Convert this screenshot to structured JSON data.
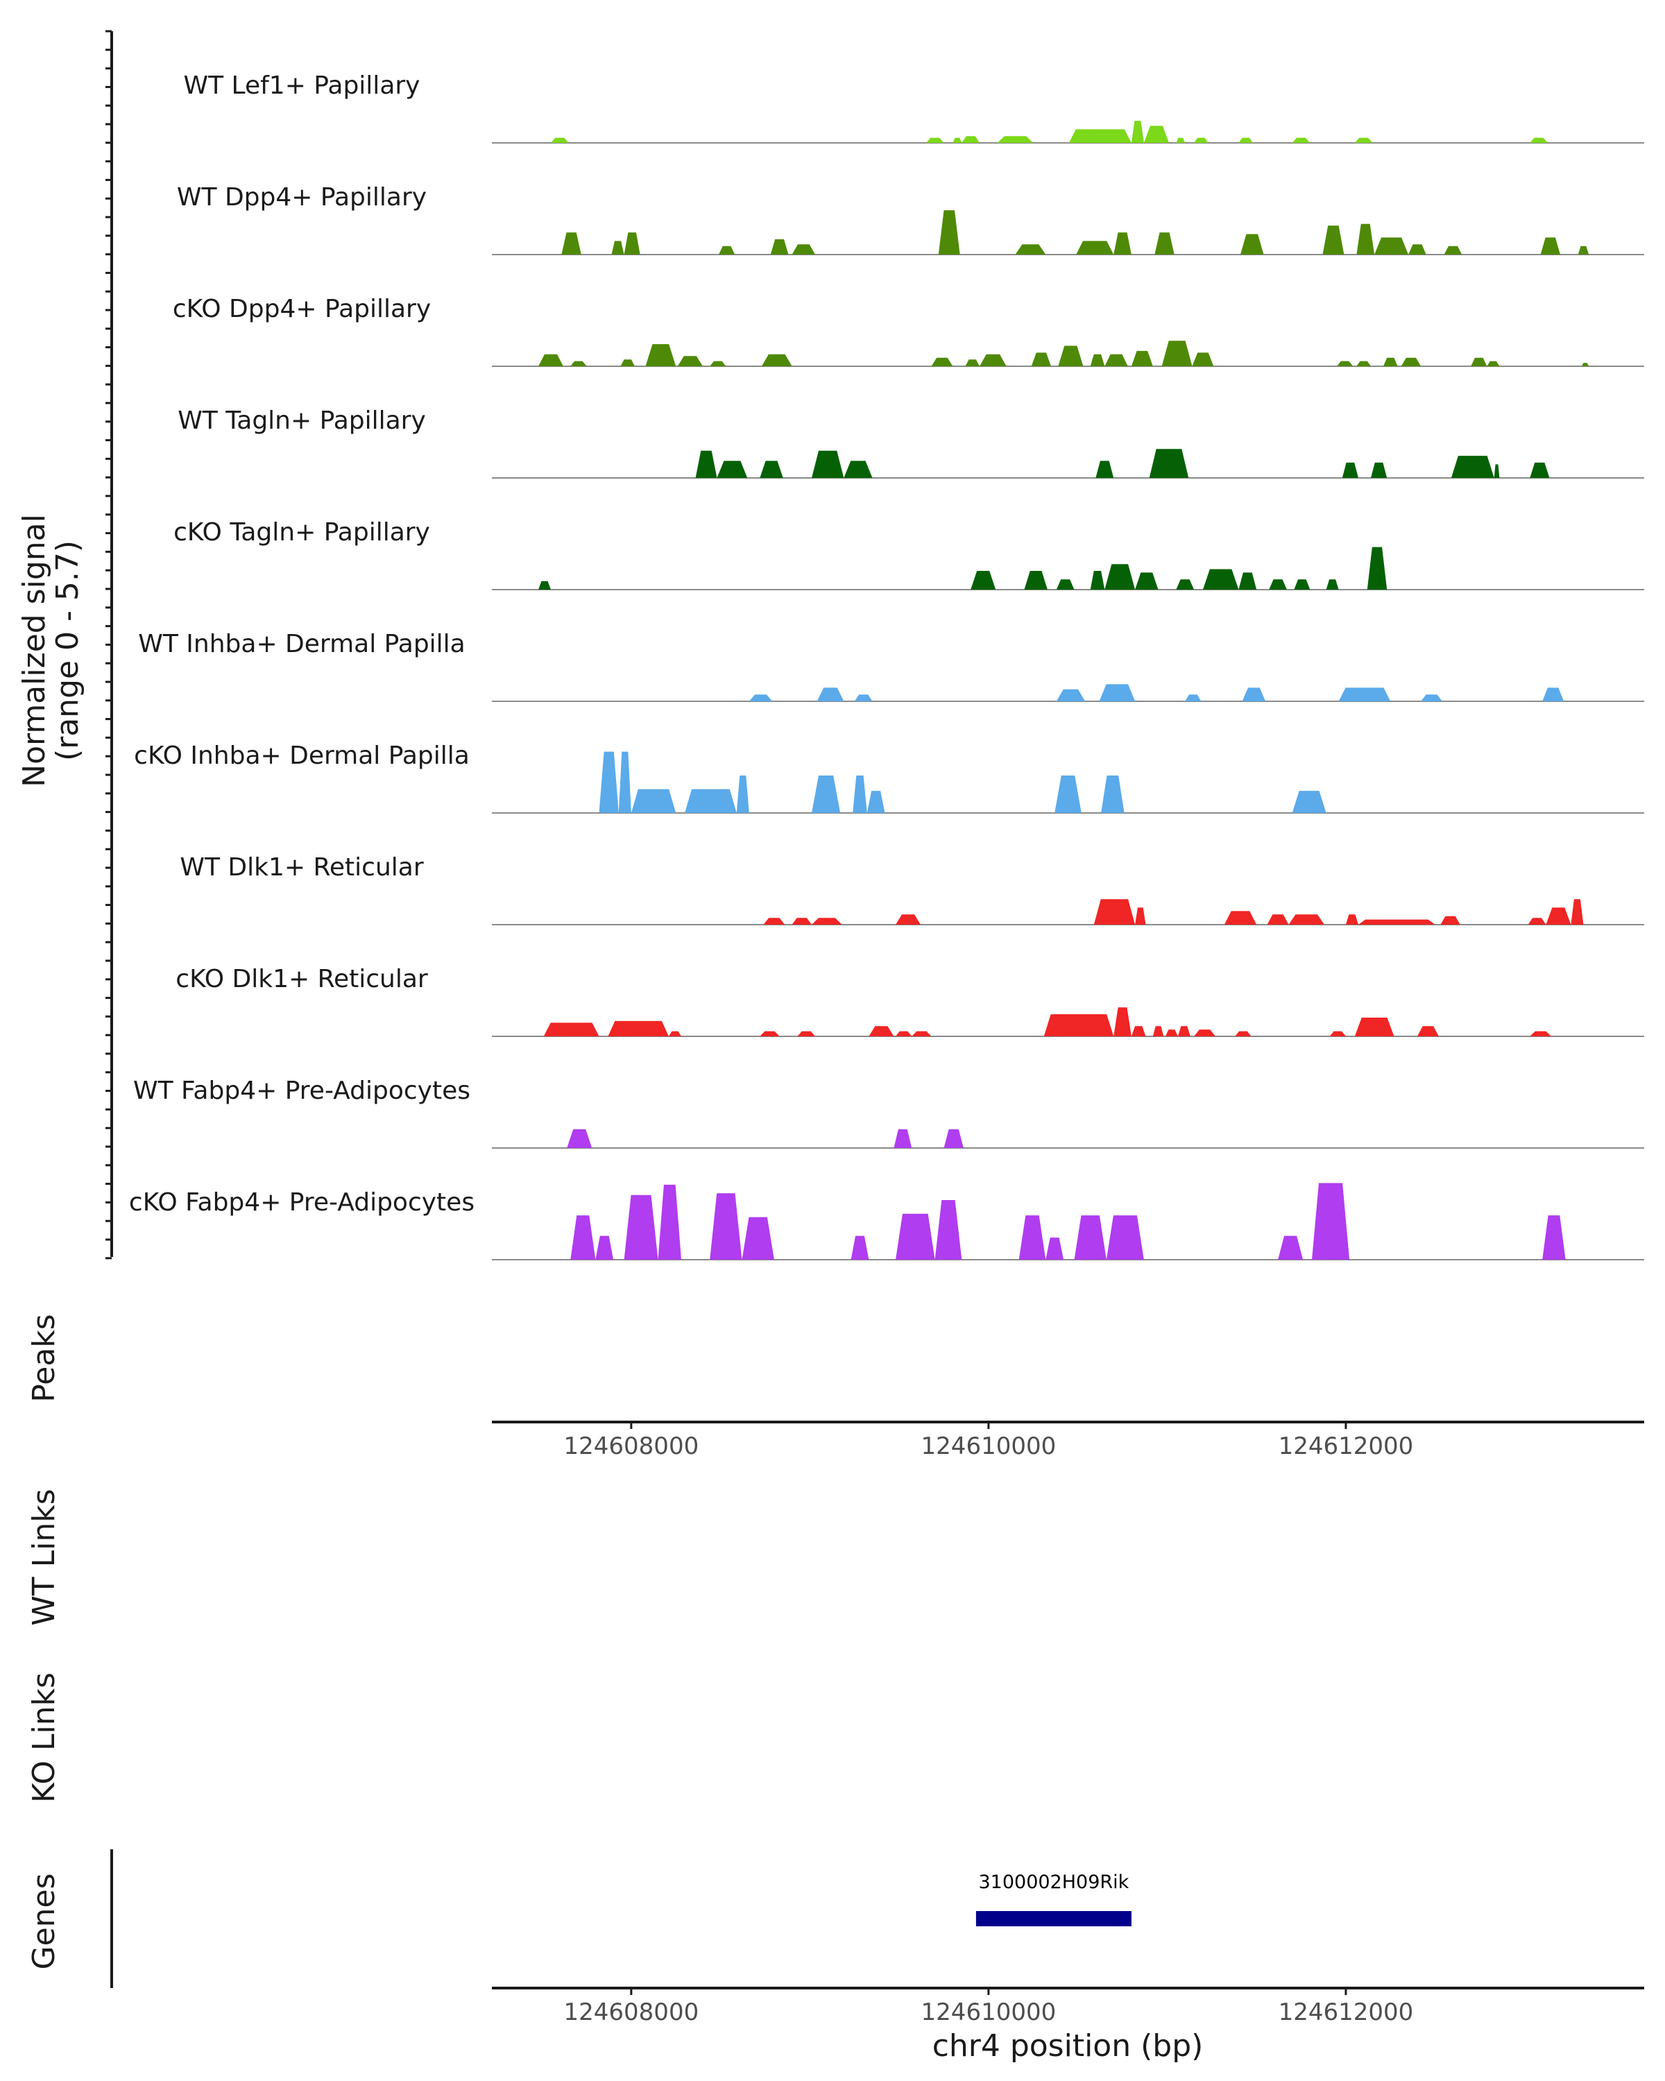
{
  "chart_data": {
    "type": "area",
    "title": "",
    "ylabel_line1": "Normalized signal",
    "ylabel_line2": "(range 0 - 5.7)",
    "ylim": [
      0,
      5.7
    ],
    "x_range": [
      124607220,
      124613670
    ],
    "xlabel": "chr4 position (bp)",
    "x_ticks": [
      124608000,
      124610000,
      124612000
    ],
    "x_tick_labels": [
      "124608000",
      "124610000",
      "124612000"
    ],
    "tracks": [
      {
        "name": "WT Lef1+ Papillary",
        "color": "#7CD81A",
        "peaks": [
          [
            124607550,
            124607650,
            0.3
          ],
          [
            124609650,
            124609750,
            0.3
          ],
          [
            124609800,
            124609850,
            0.3
          ],
          [
            124609850,
            124609950,
            0.4
          ],
          [
            124610050,
            124610250,
            0.4
          ],
          [
            124610450,
            124610800,
            0.8
          ],
          [
            124610800,
            124610870,
            1.3
          ],
          [
            124610870,
            124611010,
            1.0
          ],
          [
            124611050,
            124611100,
            0.3
          ],
          [
            124611150,
            124611230,
            0.3
          ],
          [
            124611400,
            124611480,
            0.3
          ],
          [
            124611700,
            124611800,
            0.3
          ],
          [
            124612050,
            124612150,
            0.3
          ],
          [
            124613030,
            124613130,
            0.3
          ]
        ]
      },
      {
        "name": "WT Dpp4+ Papillary",
        "color": "#4E8A07",
        "peaks": [
          [
            124607610,
            124607720,
            1.3
          ],
          [
            124607890,
            124607960,
            0.8
          ],
          [
            124607960,
            124608050,
            1.3
          ],
          [
            124608490,
            124608580,
            0.5
          ],
          [
            124608780,
            124608880,
            0.9
          ],
          [
            124608900,
            124609030,
            0.6
          ],
          [
            124609720,
            124609840,
            2.6
          ],
          [
            124610150,
            124610320,
            0.6
          ],
          [
            124610490,
            124610700,
            0.8
          ],
          [
            124610700,
            124610800,
            1.3
          ],
          [
            124610930,
            124611040,
            1.3
          ],
          [
            124611410,
            124611540,
            1.2
          ],
          [
            124611870,
            124611990,
            1.7
          ],
          [
            124612060,
            124612160,
            1.8
          ],
          [
            124612160,
            124612350,
            1.0
          ],
          [
            124612350,
            124612450,
            0.6
          ],
          [
            124612550,
            124612650,
            0.5
          ],
          [
            124613090,
            124613200,
            1.0
          ],
          [
            124613300,
            124613360,
            0.5
          ]
        ]
      },
      {
        "name": "cKO Dpp4+ Papillary",
        "color": "#4E8A07",
        "peaks": [
          [
            124607480,
            124607620,
            0.7
          ],
          [
            124607660,
            124607750,
            0.3
          ],
          [
            124607940,
            124608020,
            0.4
          ],
          [
            124608080,
            124608250,
            1.3
          ],
          [
            124608260,
            124608400,
            0.6
          ],
          [
            124608440,
            124608530,
            0.3
          ],
          [
            124608730,
            124608900,
            0.7
          ],
          [
            124609680,
            124609800,
            0.5
          ],
          [
            124609870,
            124609950,
            0.4
          ],
          [
            124609950,
            124610100,
            0.7
          ],
          [
            124610240,
            124610350,
            0.8
          ],
          [
            124610390,
            124610530,
            1.2
          ],
          [
            124610570,
            124610650,
            0.7
          ],
          [
            124610650,
            124610780,
            0.7
          ],
          [
            124610800,
            124610920,
            0.9
          ],
          [
            124610970,
            124611140,
            1.5
          ],
          [
            124611140,
            124611260,
            0.8
          ],
          [
            124611950,
            124612040,
            0.3
          ],
          [
            124612060,
            124612140,
            0.3
          ],
          [
            124612210,
            124612290,
            0.5
          ],
          [
            124612310,
            124612420,
            0.5
          ],
          [
            124612700,
            124612790,
            0.5
          ],
          [
            124612790,
            124612860,
            0.3
          ],
          [
            124613320,
            124613360,
            0.2
          ]
        ]
      },
      {
        "name": "WT Tagln+ Papillary",
        "color": "#066106",
        "peaks": [
          [
            124608360,
            124608480,
            1.6
          ],
          [
            124608480,
            124608650,
            1.0
          ],
          [
            124608720,
            124608850,
            1.0
          ],
          [
            124609010,
            124609190,
            1.6
          ],
          [
            124609190,
            124609350,
            1.0
          ],
          [
            124610600,
            124610700,
            1.0
          ],
          [
            124610900,
            124611120,
            1.7
          ],
          [
            124611980,
            124612070,
            0.9
          ],
          [
            124612140,
            124612230,
            0.9
          ],
          [
            124612590,
            124612830,
            1.3
          ],
          [
            124612830,
            124612860,
            0.8
          ],
          [
            124613030,
            124613140,
            0.9
          ]
        ]
      },
      {
        "name": "cKO Tagln+ Papillary",
        "color": "#066106",
        "peaks": [
          [
            124607480,
            124607550,
            0.5
          ],
          [
            124609900,
            124610040,
            1.1
          ],
          [
            124610200,
            124610330,
            1.1
          ],
          [
            124610380,
            124610480,
            0.6
          ],
          [
            124610570,
            124610650,
            1.1
          ],
          [
            124610650,
            124610820,
            1.5
          ],
          [
            124610820,
            124610950,
            1.0
          ],
          [
            124611050,
            124611150,
            0.6
          ],
          [
            124611200,
            124611400,
            1.2
          ],
          [
            124611400,
            124611500,
            1.0
          ],
          [
            124611570,
            124611670,
            0.6
          ],
          [
            124611710,
            124611800,
            0.6
          ],
          [
            124611890,
            124611960,
            0.6
          ],
          [
            124612120,
            124612230,
            2.5
          ]
        ]
      },
      {
        "name": "WT Inhba+ Dermal Papilla",
        "color": "#5BAAEA",
        "peaks": [
          [
            124608660,
            124608790,
            0.4
          ],
          [
            124609040,
            124609190,
            0.8
          ],
          [
            124609250,
            124609350,
            0.4
          ],
          [
            124610380,
            124610540,
            0.7
          ],
          [
            124610620,
            124610820,
            1.0
          ],
          [
            124611100,
            124611190,
            0.4
          ],
          [
            124611420,
            124611550,
            0.8
          ],
          [
            124611960,
            124612250,
            0.8
          ],
          [
            124612420,
            124612540,
            0.4
          ],
          [
            124613100,
            124613220,
            0.8
          ]
        ]
      },
      {
        "name": "cKO Inhba+ Dermal Papilla",
        "color": "#5BAAEA",
        "peaks": [
          [
            124607820,
            124607930,
            3.6
          ],
          [
            124607930,
            124608000,
            3.6
          ],
          [
            124608000,
            124608250,
            1.4
          ],
          [
            124608300,
            124608590,
            1.4
          ],
          [
            124608590,
            124608660,
            2.2
          ],
          [
            124609010,
            124609170,
            2.2
          ],
          [
            124609240,
            124609320,
            2.2
          ],
          [
            124609320,
            124609420,
            1.3
          ],
          [
            124610370,
            124610520,
            2.2
          ],
          [
            124610630,
            124610760,
            2.2
          ],
          [
            124611700,
            124611890,
            1.3
          ]
        ]
      },
      {
        "name": "WT Dlk1+ Reticular",
        "color": "#F02525",
        "peaks": [
          [
            124608740,
            124608860,
            0.4
          ],
          [
            124608900,
            124609010,
            0.4
          ],
          [
            124609010,
            124609180,
            0.4
          ],
          [
            124609480,
            124609620,
            0.6
          ],
          [
            124610590,
            124610820,
            1.5
          ],
          [
            124610820,
            124610880,
            1.0
          ],
          [
            124611320,
            124611500,
            0.8
          ],
          [
            124611560,
            124611680,
            0.6
          ],
          [
            124611680,
            124611880,
            0.6
          ],
          [
            124612000,
            124612070,
            0.6
          ],
          [
            124612070,
            124612500,
            0.3
          ],
          [
            124612530,
            124612640,
            0.5
          ],
          [
            124613020,
            124613120,
            0.4
          ],
          [
            124613120,
            124613260,
            1.0
          ],
          [
            124613260,
            124613330,
            1.5
          ]
        ]
      },
      {
        "name": "cKO Dlk1+ Reticular",
        "color": "#F02525",
        "peaks": [
          [
            124607510,
            124607820,
            0.8
          ],
          [
            124607870,
            124608210,
            0.9
          ],
          [
            124608210,
            124608280,
            0.3
          ],
          [
            124608720,
            124608830,
            0.3
          ],
          [
            124608930,
            124609030,
            0.3
          ],
          [
            124609330,
            124609470,
            0.6
          ],
          [
            124609480,
            124609570,
            0.3
          ],
          [
            124609570,
            124609680,
            0.3
          ],
          [
            124610310,
            124610700,
            1.3
          ],
          [
            124610700,
            124610800,
            1.7
          ],
          [
            124610800,
            124610880,
            0.6
          ],
          [
            124610920,
            124610980,
            0.6
          ],
          [
            124610990,
            124611060,
            0.4
          ],
          [
            124611060,
            124611130,
            0.6
          ],
          [
            124611150,
            124611270,
            0.4
          ],
          [
            124611380,
            124611470,
            0.3
          ],
          [
            124611910,
            124612000,
            0.3
          ],
          [
            124612050,
            124612270,
            1.1
          ],
          [
            124612400,
            124612520,
            0.6
          ],
          [
            124613030,
            124613150,
            0.3
          ]
        ]
      },
      {
        "name": "WT Fabp4+ Pre-Adipocytes",
        "color": "#B03DEF",
        "peaks": [
          [
            124607640,
            124607780,
            1.1
          ],
          [
            124609470,
            124609570,
            1.1
          ],
          [
            124609750,
            124609860,
            1.1
          ]
        ]
      },
      {
        "name": "cKO Fabp4+ Pre-Adipocytes",
        "color": "#B03DEF",
        "peaks": [
          [
            124607660,
            124607800,
            2.6
          ],
          [
            124607800,
            124607900,
            1.4
          ],
          [
            124607960,
            124608150,
            3.8
          ],
          [
            124608150,
            124608280,
            4.4
          ],
          [
            124608440,
            124608620,
            3.9
          ],
          [
            124608620,
            124608800,
            2.5
          ],
          [
            124609230,
            124609330,
            1.4
          ],
          [
            124609480,
            124609700,
            2.7
          ],
          [
            124609700,
            124609850,
            3.5
          ],
          [
            124610170,
            124610320,
            2.6
          ],
          [
            124610320,
            124610420,
            1.3
          ],
          [
            124610480,
            124610660,
            2.6
          ],
          [
            124610660,
            124610870,
            2.6
          ],
          [
            124611620,
            124611760,
            1.4
          ],
          [
            124611810,
            124612020,
            4.5
          ],
          [
            124613100,
            124613230,
            2.6
          ]
        ]
      }
    ],
    "peaks_track_label": "Peaks",
    "links_tracks": [
      "WT Links",
      "KO Links"
    ],
    "genes_track_label": "Genes",
    "genes": [
      {
        "name": "3100002H09Rik",
        "start": 124609930,
        "end": 124610800,
        "color": "#00008B"
      }
    ]
  }
}
